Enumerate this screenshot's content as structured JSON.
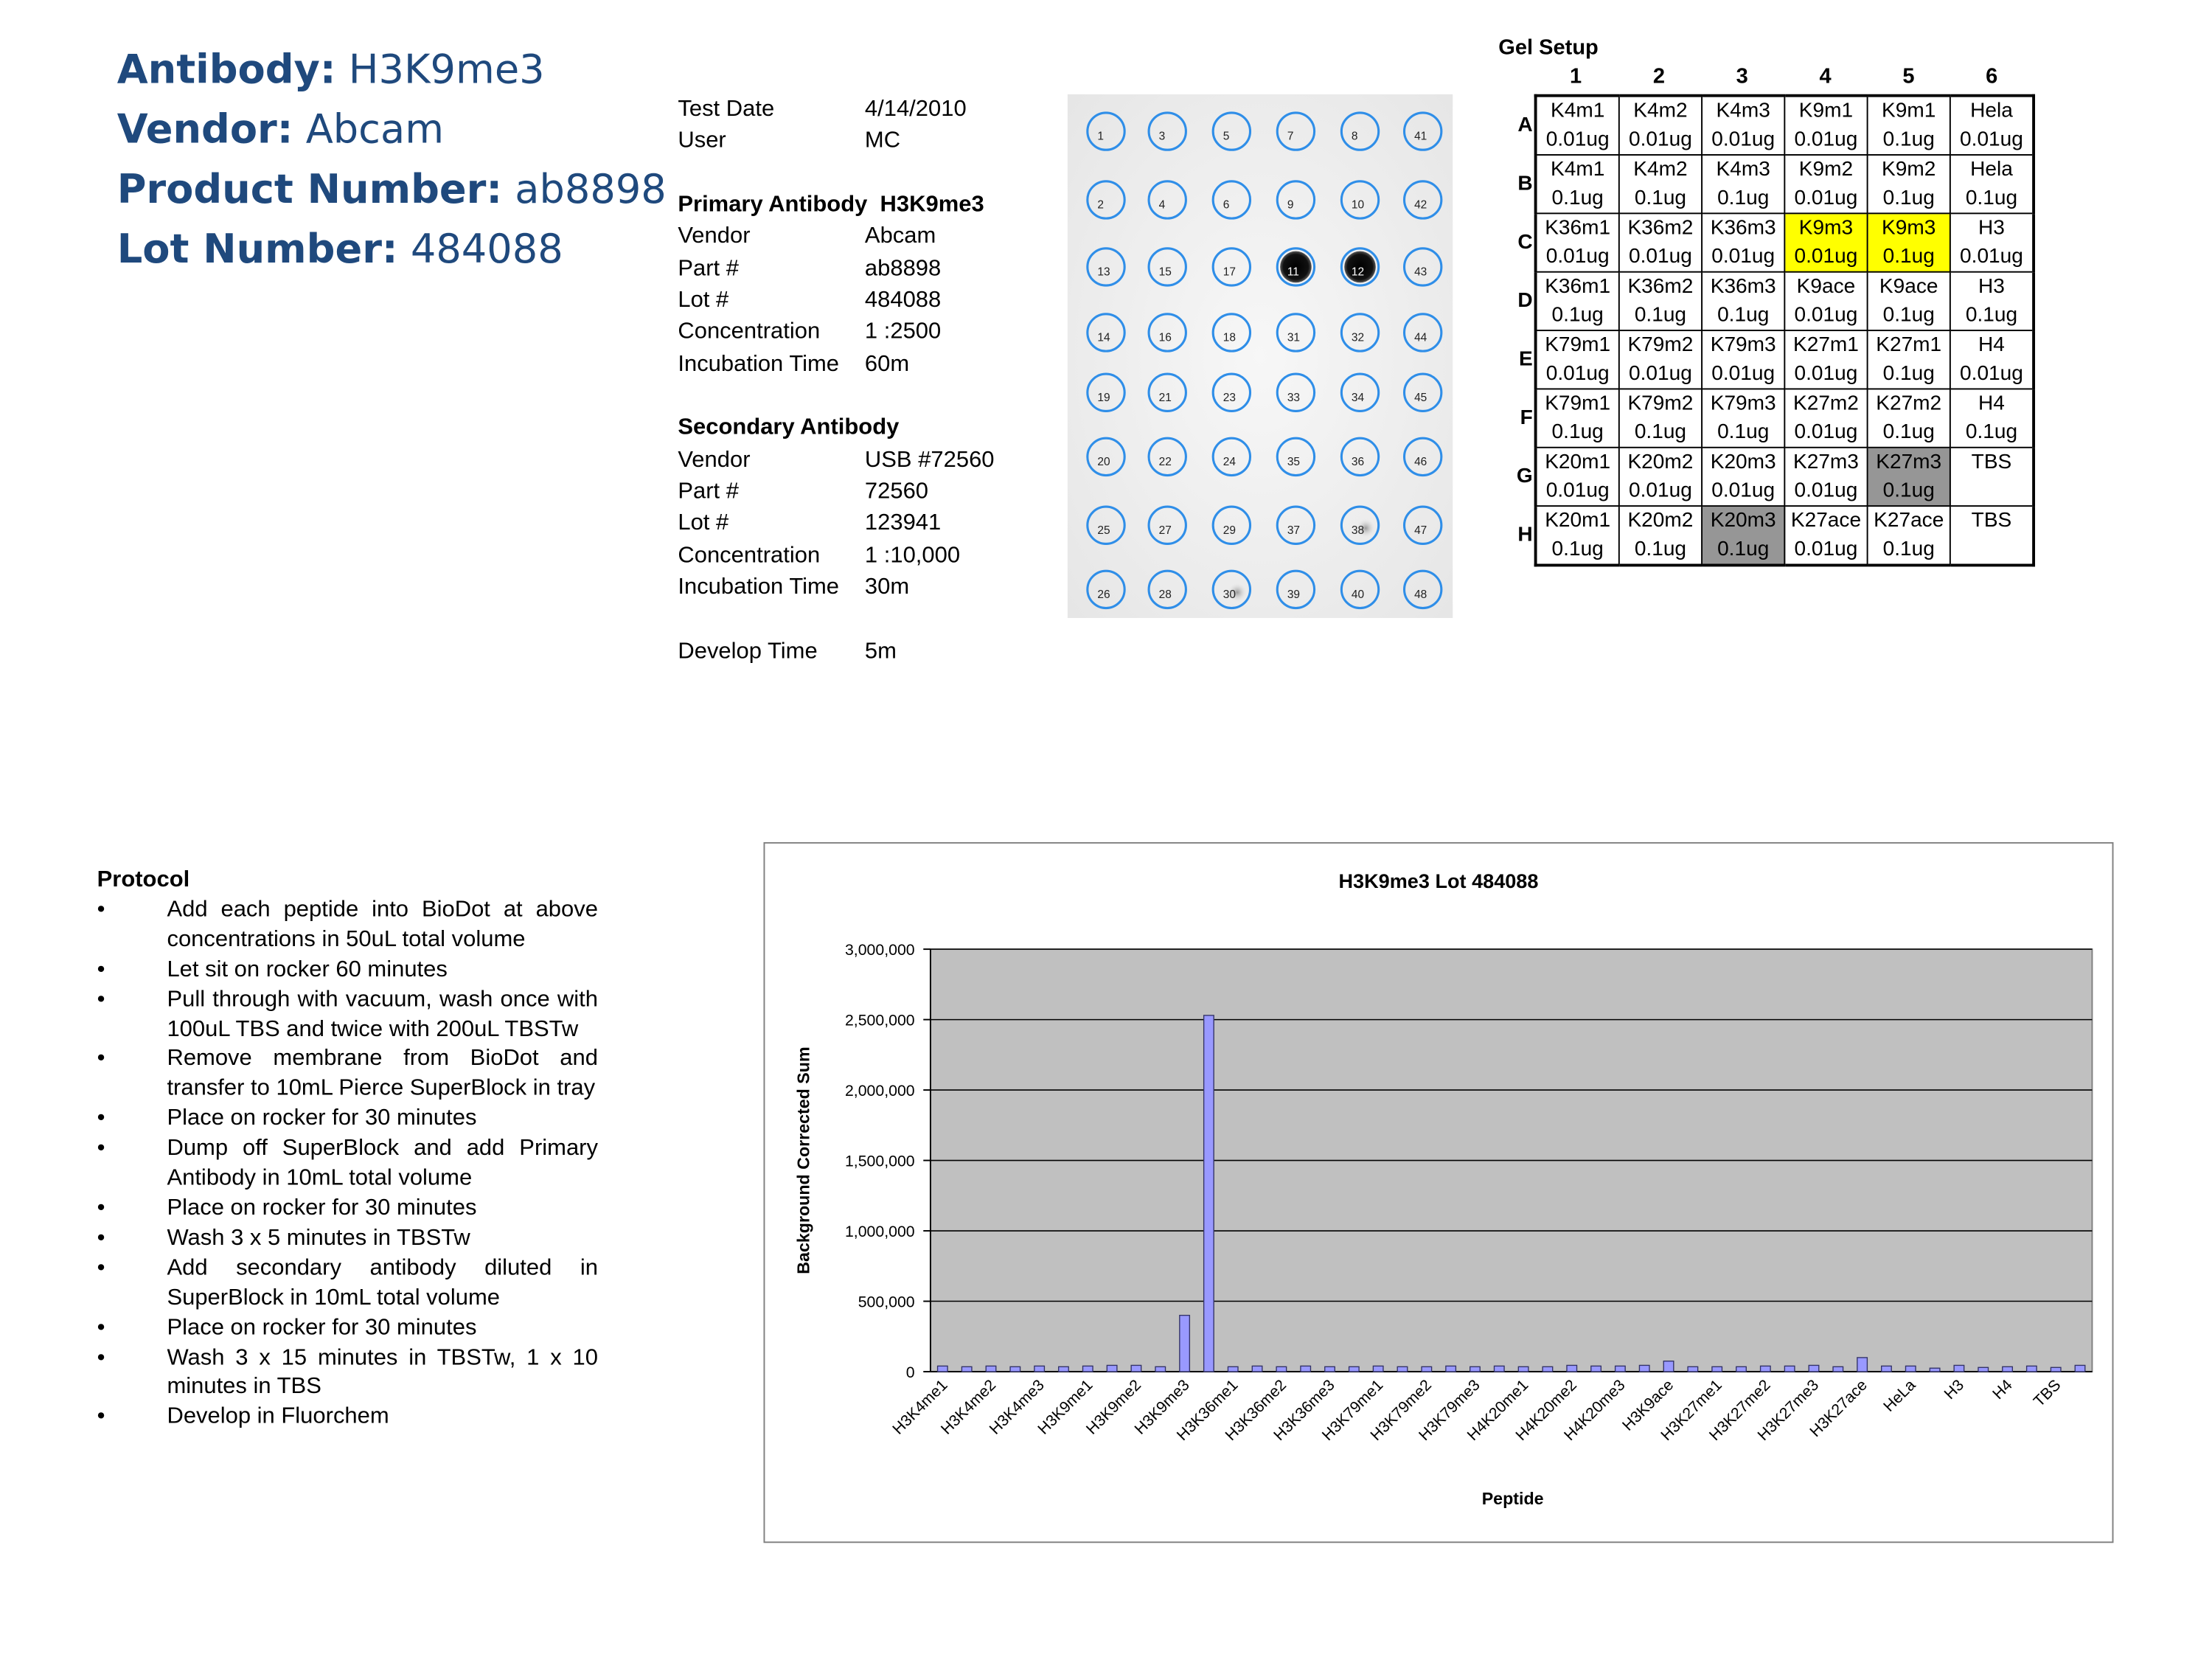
{
  "header": {
    "lines": [
      {
        "label": "Antibody:",
        "value": "H3K9me3"
      },
      {
        "label": "Vendor:",
        "value": "Abcam"
      },
      {
        "label": "Product Number:",
        "value": "ab8898"
      },
      {
        "label": "Lot Number:",
        "value": "484088"
      }
    ]
  },
  "info": {
    "sections": [
      {
        "rows": [
          [
            "Test Date",
            "4/14/2010"
          ],
          [
            "User",
            "MC"
          ]
        ]
      },
      {
        "title": "Primary Antibody",
        "title_value": "H3K9me3",
        "rows": [
          [
            "Vendor",
            "Abcam"
          ],
          [
            "Part #",
            "ab8898"
          ],
          [
            "Lot #",
            "484088"
          ],
          [
            "Concentration",
            "1 :2500"
          ],
          [
            "Incubation Time",
            "60m"
          ]
        ]
      },
      {
        "title": "Secondary Antibody",
        "rows": [
          [
            "Vendor",
            "USB #72560"
          ],
          [
            "Part #",
            "72560"
          ],
          [
            "Lot #",
            "123941"
          ],
          [
            "Concentration",
            "1 :10,000"
          ],
          [
            "Incubation Time",
            "30m"
          ]
        ]
      },
      {
        "rows": [
          [
            "Develop Time",
            "5m"
          ]
        ]
      }
    ]
  },
  "blot": {
    "rows": [
      [
        "1",
        "3",
        "5",
        "7",
        "8",
        "41"
      ],
      [
        "2",
        "4",
        "6",
        "9",
        "10",
        "42"
      ],
      [
        "13",
        "15",
        "17",
        "11",
        "12",
        "43"
      ],
      [
        "14",
        "16",
        "18",
        "31",
        "32",
        "44"
      ],
      [
        "19",
        "21",
        "23",
        "33",
        "34",
        "45"
      ],
      [
        "20",
        "22",
        "24",
        "35",
        "36",
        "46"
      ],
      [
        "25",
        "27",
        "29",
        "37",
        "38",
        "47"
      ],
      [
        "26",
        "28",
        "30",
        "39",
        "40",
        "48"
      ]
    ]
  },
  "gel": {
    "title": "Gel Setup",
    "columns": [
      "1",
      "2",
      "3",
      "4",
      "5",
      "6"
    ],
    "rows": [
      {
        "label": "A",
        "cells": [
          {
            "name": "K4m1",
            "amount": "0.01ug"
          },
          {
            "name": "K4m2",
            "amount": "0.01ug"
          },
          {
            "name": "K4m3",
            "amount": "0.01ug"
          },
          {
            "name": "K9m1",
            "amount": "0.01ug"
          },
          {
            "name": "K9m1",
            "amount": "0.1ug"
          },
          {
            "name": "Hela",
            "amount": "0.01ug"
          }
        ]
      },
      {
        "label": "B",
        "cells": [
          {
            "name": "K4m1",
            "amount": "0.1ug"
          },
          {
            "name": "K4m2",
            "amount": "0.1ug"
          },
          {
            "name": "K4m3",
            "amount": "0.1ug"
          },
          {
            "name": "K9m2",
            "amount": "0.01ug"
          },
          {
            "name": "K9m2",
            "amount": "0.1ug"
          },
          {
            "name": "Hela",
            "amount": "0.1ug"
          }
        ]
      },
      {
        "label": "C",
        "cells": [
          {
            "name": "K36m1",
            "amount": "0.01ug"
          },
          {
            "name": "K36m2",
            "amount": "0.01ug"
          },
          {
            "name": "K36m3",
            "amount": "0.01ug"
          },
          {
            "name": "K9m3",
            "amount": "0.01ug",
            "fill": "#ffff00"
          },
          {
            "name": "K9m3",
            "amount": "0.1ug",
            "fill": "#ffff00"
          },
          {
            "name": "H3",
            "amount": "0.01ug"
          }
        ]
      },
      {
        "label": "D",
        "cells": [
          {
            "name": "K36m1",
            "amount": "0.1ug"
          },
          {
            "name": "K36m2",
            "amount": "0.1ug"
          },
          {
            "name": "K36m3",
            "amount": "0.1ug"
          },
          {
            "name": "K9ace",
            "amount": "0.01ug"
          },
          {
            "name": "K9ace",
            "amount": "0.1ug"
          },
          {
            "name": "H3",
            "amount": "0.1ug"
          }
        ]
      },
      {
        "label": "E",
        "cells": [
          {
            "name": "K79m1",
            "amount": "0.01ug"
          },
          {
            "name": "K79m2",
            "amount": "0.01ug"
          },
          {
            "name": "K79m3",
            "amount": "0.01ug"
          },
          {
            "name": "K27m1",
            "amount": "0.01ug"
          },
          {
            "name": "K27m1",
            "amount": "0.1ug"
          },
          {
            "name": "H4",
            "amount": "0.01ug"
          }
        ]
      },
      {
        "label": "F",
        "cells": [
          {
            "name": "K79m1",
            "amount": "0.1ug"
          },
          {
            "name": "K79m2",
            "amount": "0.1ug"
          },
          {
            "name": "K79m3",
            "amount": "0.1ug"
          },
          {
            "name": "K27m2",
            "amount": "0.01ug"
          },
          {
            "name": "K27m2",
            "amount": "0.1ug"
          },
          {
            "name": "H4",
            "amount": "0.1ug"
          }
        ]
      },
      {
        "label": "G",
        "cells": [
          {
            "name": "K20m1",
            "amount": "0.01ug"
          },
          {
            "name": "K20m2",
            "amount": "0.01ug"
          },
          {
            "name": "K20m3",
            "amount": "0.01ug"
          },
          {
            "name": "K27m3",
            "amount": "0.01ug"
          },
          {
            "name": "K27m3",
            "amount": "0.1ug",
            "fill": "#969696"
          },
          {
            "name": "TBS"
          }
        ]
      },
      {
        "label": "H",
        "cells": [
          {
            "name": "K20m1",
            "amount": "0.1ug"
          },
          {
            "name": "K20m2",
            "amount": "0.1ug"
          },
          {
            "name": "K20m3",
            "amount": "0.1ug",
            "fill": "#969696"
          },
          {
            "name": "K27ace",
            "amount": "0.01ug"
          },
          {
            "name": "K27ace",
            "amount": "0.1ug"
          },
          {
            "name": "TBS"
          }
        ]
      }
    ]
  },
  "protocol": {
    "title": "Protocol",
    "items": [
      "Add each peptide into BioDot at above concentrations in 50uL total volume",
      "Let sit on rocker 60 minutes",
      "Pull through with vacuum, wash once with 100uL TBS and twice with 200uL TBSTw",
      "Remove membrane from BioDot and transfer to 10mL Pierce SuperBlock in tray",
      "Place on rocker for 30 minutes",
      "Dump off SuperBlock and add Primary Antibody in 10mL total volume",
      "Place on rocker for 30 minutes",
      "Wash 3 x 5 minutes in TBSTw",
      "Add secondary antibody diluted in SuperBlock in 10mL total volume",
      "Place on rocker for 30 minutes",
      "Wash 3 x 15 minutes in TBSTw, 1 x 10 minutes in TBS",
      "Develop in Fluorchem"
    ]
  },
  "chart_data": {
    "type": "bar",
    "title": "H3K9me3 Lot 484088",
    "x_label": "Peptide",
    "y_label": "Background Corrected Sum",
    "categories": [
      "H3K4me1",
      null,
      "H3K4me2",
      null,
      "H3K4me3",
      null,
      "H3K9me1",
      null,
      "H3K9me2",
      null,
      "H3K9me3",
      null,
      "H3K36me1",
      null,
      "H3K36me2",
      null,
      "H3K36me3",
      null,
      "H3K79me1",
      null,
      "H3K79me2",
      null,
      "H3K79me3",
      null,
      "H4K20me1",
      null,
      "H4K20me2",
      null,
      "H4K20me3",
      null,
      "H3K9ace",
      null,
      "H3K27me1",
      null,
      "H3K27me2",
      null,
      "H3K27me3",
      null,
      "H3K27ace",
      null,
      "HeLa",
      null,
      "H3",
      null,
      "H4",
      null,
      "TBS",
      null
    ],
    "values": [
      40000,
      35000,
      40000,
      35000,
      40000,
      35000,
      40000,
      45000,
      45000,
      35000,
      400000,
      2530000,
      35000,
      40000,
      35000,
      40000,
      35000,
      35000,
      40000,
      35000,
      35000,
      40000,
      35000,
      40000,
      35000,
      35000,
      45000,
      40000,
      40000,
      45000,
      75000,
      35000,
      35000,
      35000,
      40000,
      40000,
      45000,
      35000,
      100000,
      40000,
      40000,
      25000,
      45000,
      30000,
      35000,
      40000,
      30000,
      45000
    ],
    "color": "#9999ff",
    "plot_background": "#c0c0c0",
    "grid": true,
    "ylim": [
      0,
      3000000
    ],
    "yticks": [
      0,
      {
        "value": 500000,
        "label": "500,000"
      },
      {
        "value": 1000000,
        "label": "1,000,000"
      },
      {
        "value": 1500000,
        "label": "1,500,000"
      },
      {
        "value": 2000000,
        "label": "2,000,000"
      },
      {
        "value": 2500000,
        "label": "2,500,000"
      },
      {
        "value": 3000000,
        "label": "3,000,000"
      }
    ]
  }
}
